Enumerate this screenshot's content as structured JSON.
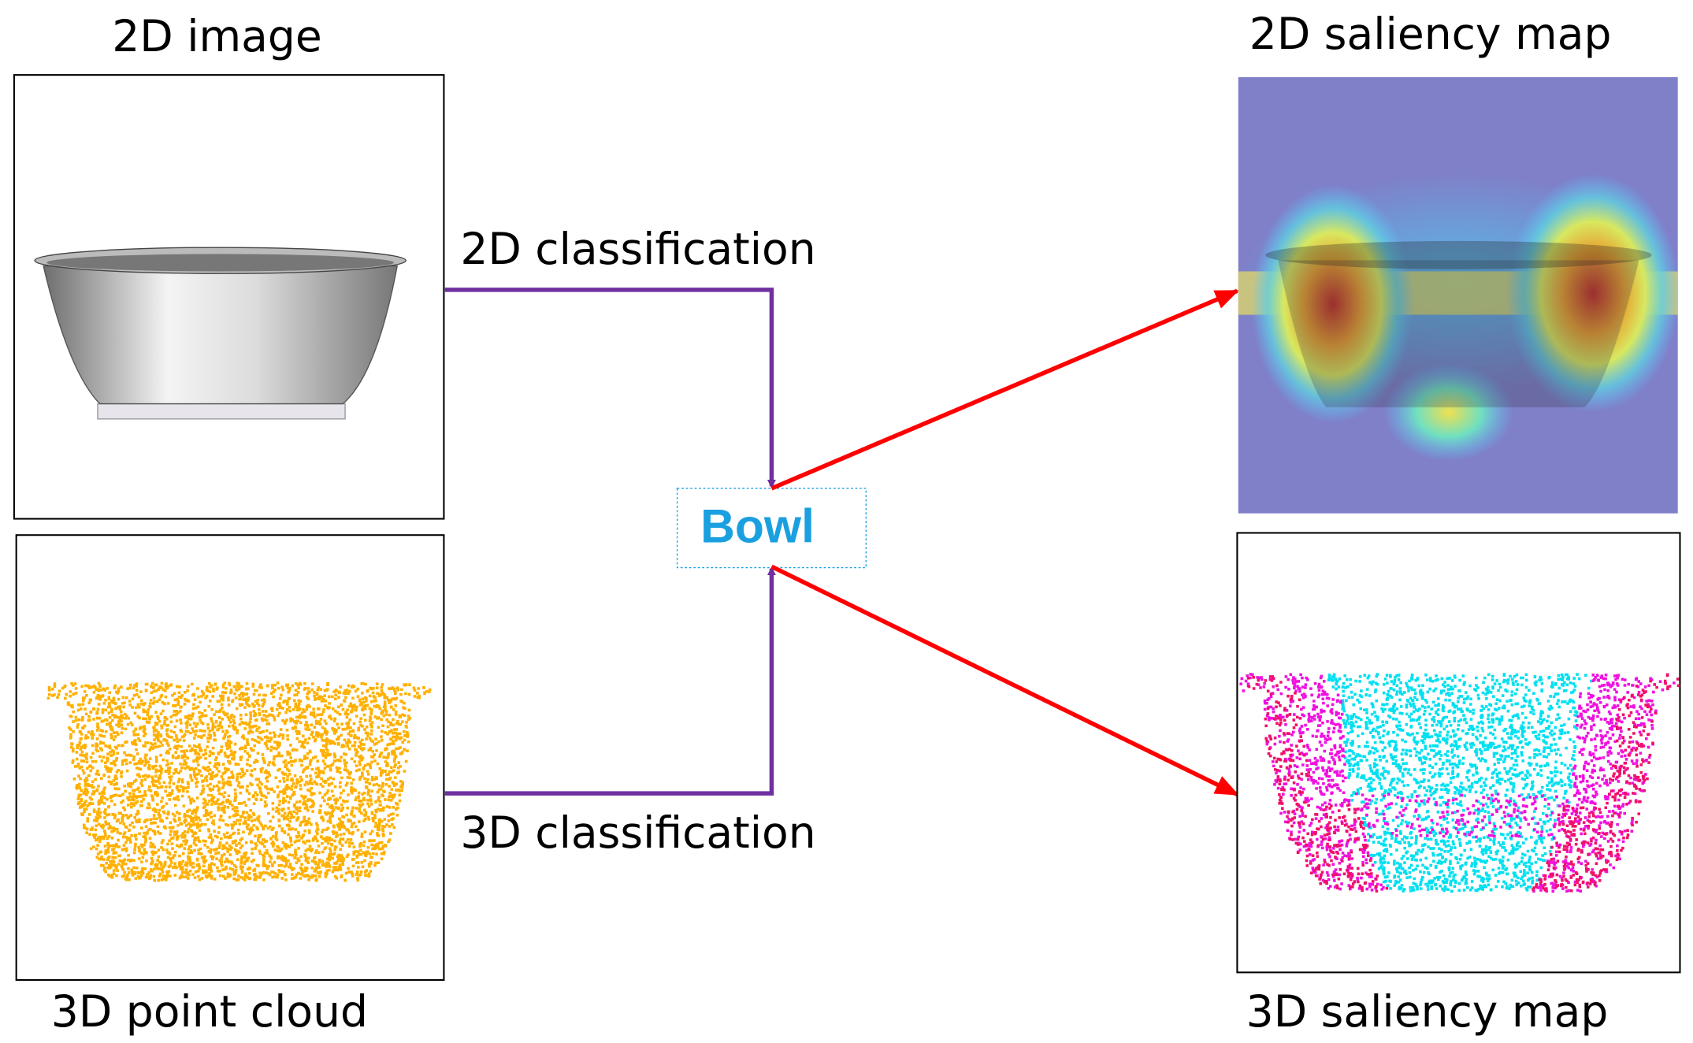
{
  "panels": {
    "image_2d": {
      "title": "2D image"
    },
    "point_cloud_3d": {
      "title": "3D point cloud"
    },
    "saliency_2d": {
      "title": "2D saliency map"
    },
    "saliency_3d": {
      "title": "3D saliency map"
    }
  },
  "edges": {
    "classification_2d": {
      "label": "2D classification"
    },
    "classification_3d": {
      "label": "3D classification"
    }
  },
  "result": {
    "label": "Bowl"
  }
}
